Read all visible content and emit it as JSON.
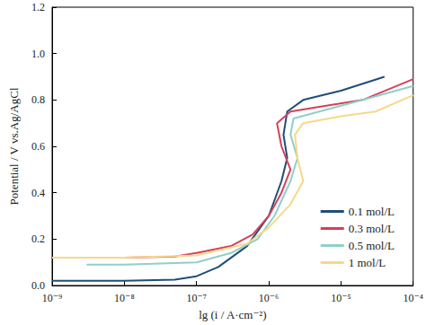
{
  "chart_data": {
    "type": "line",
    "x_label": "lg (i / A·cm⁻²)",
    "y_label": "Potential / V vs.Ag/AgCl",
    "log": "x",
    "grid": false,
    "legend": "lower right",
    "line_style": "solid",
    "xlim": [
      1e-09,
      0.0001
    ],
    "xticks": [
      {
        "value": 1e-09,
        "label": "10⁻⁹"
      },
      {
        "value": 1e-08,
        "label": "10⁻⁸"
      },
      {
        "value": 1e-07,
        "label": "10⁻⁷"
      },
      {
        "value": 1e-06,
        "label": "10⁻⁶"
      },
      {
        "value": 1e-05,
        "label": "10⁻⁵"
      },
      {
        "value": 0.0001,
        "label": "10⁻⁴"
      }
    ],
    "ylim": [
      0,
      1.2
    ],
    "yticks": [
      {
        "value": 0,
        "label": "0.0"
      },
      0.2,
      0.4,
      0.6,
      0.8,
      {
        "value": 1,
        "label": "1.0"
      },
      1.2
    ],
    "series": [
      {
        "name": "0.1 mol/L",
        "color": "#1f4e79",
        "x": [
          1e-09,
          1e-08,
          5e-08,
          1e-07,
          2e-07,
          5e-07,
          1e-06,
          1.5e-06,
          1.8e-06,
          1.6e-06,
          1.8e-06,
          3e-06,
          1e-05,
          4e-05
        ],
        "values": [
          0.02,
          0.02,
          0.025,
          0.04,
          0.08,
          0.17,
          0.3,
          0.45,
          0.55,
          0.65,
          0.75,
          0.8,
          0.84,
          0.9
        ]
      },
      {
        "name": "0.3 mol/L",
        "color": "#d6405a",
        "x": [
          1e-09,
          1e-08,
          5e-08,
          1e-07,
          3e-07,
          6e-07,
          1e-06,
          1.5e-06,
          2e-06,
          1.5e-06,
          1.3e-06,
          2e-06,
          5e-06,
          2e-05,
          0.0001
        ],
        "values": [
          0.12,
          0.12,
          0.125,
          0.14,
          0.17,
          0.22,
          0.3,
          0.4,
          0.5,
          0.6,
          0.7,
          0.75,
          0.77,
          0.8,
          0.89
        ]
      },
      {
        "name": "0.5 mol/L",
        "color": "#8fd0c8",
        "x": [
          3e-09,
          1e-08,
          1e-07,
          3e-07,
          7e-07,
          1.2e-06,
          2e-06,
          2.5e-06,
          2e-06,
          2.2e-06,
          5e-06,
          2e-05,
          0.0001
        ],
        "values": [
          0.09,
          0.09,
          0.1,
          0.14,
          0.2,
          0.3,
          0.45,
          0.55,
          0.65,
          0.72,
          0.75,
          0.8,
          0.86
        ]
      },
      {
        "name": "1 mol/L",
        "color": "#f5d98a",
        "x": [
          1e-09,
          1e-08,
          1e-07,
          5e-07,
          1e-06,
          2e-06,
          3e-06,
          2.5e-06,
          2.3e-06,
          3e-06,
          1e-05,
          3e-05,
          0.0001
        ],
        "values": [
          0.12,
          0.12,
          0.13,
          0.18,
          0.25,
          0.35,
          0.45,
          0.55,
          0.65,
          0.7,
          0.73,
          0.75,
          0.82
        ]
      }
    ]
  }
}
